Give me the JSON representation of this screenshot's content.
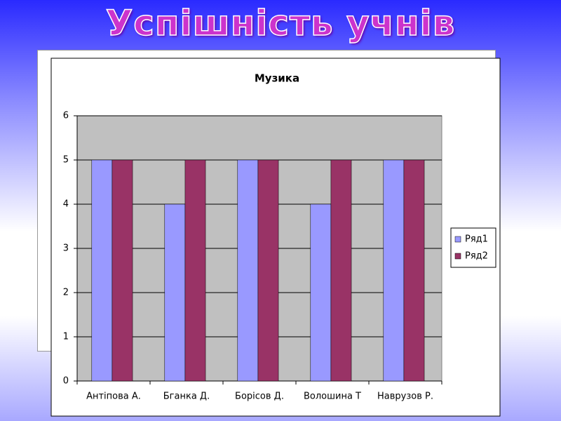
{
  "slide_title": "Успішність учнів",
  "chart_data": {
    "type": "bar",
    "title": "Музика",
    "categories": [
      "Антіпова А.",
      "Бганка Д.",
      "Борісов Д.",
      "Волошина Т",
      "Наврузов Р."
    ],
    "series": [
      {
        "name": "Ряд1",
        "color": "#9999ff",
        "values": [
          5,
          4,
          5,
          4,
          5
        ]
      },
      {
        "name": "Ряд2",
        "color": "#993366",
        "values": [
          5,
          5,
          5,
          5,
          5
        ]
      }
    ],
    "ylim": [
      0,
      6
    ],
    "yticks": [
      0,
      1,
      2,
      3,
      4,
      5,
      6
    ],
    "grid": true,
    "plot_background": "#c0c0c0",
    "legend": "right"
  }
}
